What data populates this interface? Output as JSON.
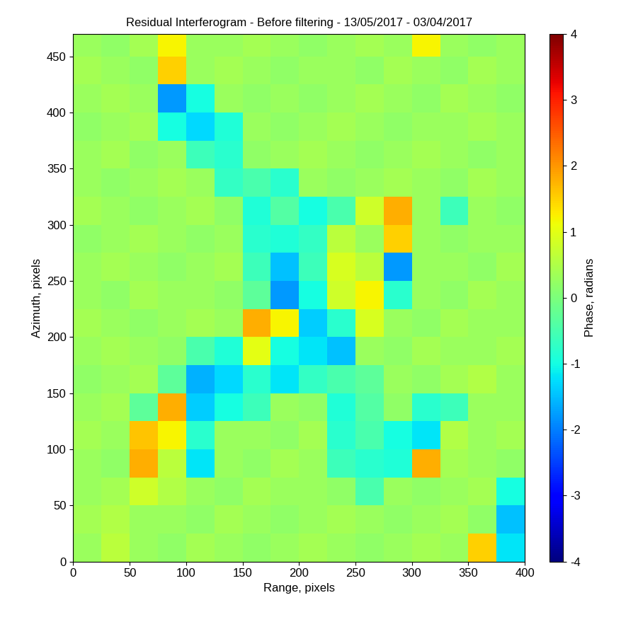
{
  "chart_data": {
    "type": "heatmap",
    "title": "Residual Interferogram - Before filtering - 13/05/2017 - 03/04/2017",
    "x_label": "Range, pixels",
    "y_label": "Azimuth, pixels",
    "x_edges": [
      0,
      25,
      50,
      75,
      100,
      125,
      150,
      175,
      200,
      225,
      250,
      275,
      300,
      325,
      350,
      375,
      400
    ],
    "y_edges": [
      0,
      25,
      50,
      75,
      100,
      125,
      150,
      175,
      200,
      225,
      250,
      275,
      300,
      325,
      350,
      375,
      400,
      425,
      450,
      475
    ],
    "cells": [
      [
        0.3,
        0.6,
        0.3,
        0.2,
        0.4,
        0.3,
        0.2,
        0.3,
        0.4,
        0.3,
        0.2,
        0.3,
        0.4,
        0.3,
        1.5,
        -1.2
      ],
      [
        0.4,
        0.5,
        0.3,
        0.3,
        0.2,
        0.4,
        0.3,
        0.2,
        0.3,
        0.4,
        0.3,
        0.2,
        0.3,
        0.4,
        0.2,
        -1.5
      ],
      [
        0.3,
        0.4,
        0.8,
        0.5,
        0.3,
        0.2,
        0.4,
        0.3,
        0.3,
        0.2,
        -0.5,
        0.3,
        0.2,
        0.3,
        0.4,
        -1.0
      ],
      [
        0.3,
        0.2,
        1.8,
        0.6,
        -1.2,
        0.3,
        0.2,
        0.4,
        0.3,
        -0.6,
        -0.8,
        -0.9,
        1.8,
        0.4,
        0.3,
        0.2
      ],
      [
        0.4,
        0.3,
        1.6,
        1.2,
        -0.8,
        0.3,
        0.3,
        0.2,
        0.4,
        -0.8,
        -0.5,
        -1.0,
        -1.2,
        0.5,
        0.3,
        0.4
      ],
      [
        0.3,
        0.4,
        -0.3,
        1.8,
        -1.4,
        -1.0,
        -0.6,
        0.3,
        0.2,
        -0.9,
        -0.4,
        0.2,
        -0.8,
        -0.6,
        0.3,
        0.3
      ],
      [
        0.2,
        0.3,
        0.4,
        -0.3,
        -1.6,
        -1.3,
        -0.8,
        -1.2,
        -0.7,
        -0.5,
        -0.3,
        0.3,
        0.2,
        0.4,
        0.5,
        0.3
      ],
      [
        0.3,
        0.4,
        0.3,
        0.2,
        -0.5,
        -0.9,
        1.0,
        -1.0,
        -1.2,
        -1.5,
        0.3,
        0.2,
        0.4,
        0.3,
        0.3,
        0.4
      ],
      [
        0.4,
        0.3,
        0.2,
        0.3,
        0.4,
        0.3,
        1.8,
        1.2,
        -1.4,
        -0.8,
        0.9,
        0.3,
        0.2,
        0.4,
        0.3,
        0.3
      ],
      [
        0.3,
        0.2,
        0.4,
        0.3,
        0.3,
        0.2,
        -0.3,
        -1.8,
        -1.0,
        0.8,
        1.2,
        -0.8,
        0.3,
        0.2,
        0.4,
        0.3
      ],
      [
        0.3,
        0.4,
        0.3,
        0.2,
        0.3,
        0.4,
        -0.6,
        -1.5,
        -0.6,
        0.9,
        0.6,
        -1.8,
        0.3,
        0.3,
        0.2,
        0.4
      ],
      [
        0.2,
        0.3,
        0.4,
        0.3,
        0.2,
        0.3,
        -0.8,
        -0.9,
        -0.7,
        0.6,
        0.3,
        1.5,
        0.3,
        0.2,
        0.3,
        0.3
      ],
      [
        0.4,
        0.3,
        0.2,
        0.3,
        0.4,
        0.2,
        -0.9,
        -0.4,
        -1.0,
        -0.5,
        0.8,
        1.8,
        0.3,
        -0.6,
        0.3,
        0.2
      ],
      [
        0.3,
        0.2,
        0.3,
        0.4,
        0.3,
        -0.7,
        -0.5,
        -0.8,
        0.3,
        0.2,
        0.3,
        0.4,
        0.3,
        0.2,
        0.4,
        0.3
      ],
      [
        0.3,
        0.4,
        0.2,
        0.3,
        -0.6,
        -0.8,
        0.2,
        0.3,
        0.4,
        0.3,
        0.2,
        0.3,
        0.4,
        0.3,
        0.2,
        0.3
      ],
      [
        0.2,
        0.3,
        0.4,
        -1.0,
        -1.3,
        -0.9,
        0.3,
        0.2,
        0.3,
        0.4,
        0.3,
        0.2,
        0.3,
        0.3,
        0.4,
        0.3
      ],
      [
        0.3,
        0.4,
        0.3,
        -1.8,
        -1.0,
        0.3,
        0.2,
        0.3,
        0.2,
        0.3,
        0.4,
        0.3,
        0.2,
        0.4,
        0.3,
        0.2
      ],
      [
        0.4,
        0.3,
        0.2,
        1.5,
        0.3,
        0.4,
        0.3,
        0.2,
        0.3,
        0.3,
        0.2,
        0.4,
        0.3,
        0.2,
        0.4,
        0.3
      ],
      [
        0.3,
        0.2,
        0.4,
        1.2,
        0.3,
        0.3,
        0.4,
        0.3,
        0.2,
        0.3,
        0.4,
        0.3,
        1.2,
        0.3,
        0.2,
        0.3
      ]
    ],
    "xlim": [
      0,
      400
    ],
    "ylim": [
      0,
      470
    ],
    "xticks": [
      0,
      50,
      100,
      150,
      200,
      250,
      300,
      350,
      400
    ],
    "yticks": [
      0,
      50,
      100,
      150,
      200,
      250,
      300,
      350,
      400,
      450
    ],
    "colorbar": {
      "label": "Phase, radians",
      "range": [
        -4,
        4
      ],
      "ticks": [
        -4,
        -3,
        -2,
        -1,
        0,
        1,
        2,
        3,
        4
      ]
    }
  }
}
